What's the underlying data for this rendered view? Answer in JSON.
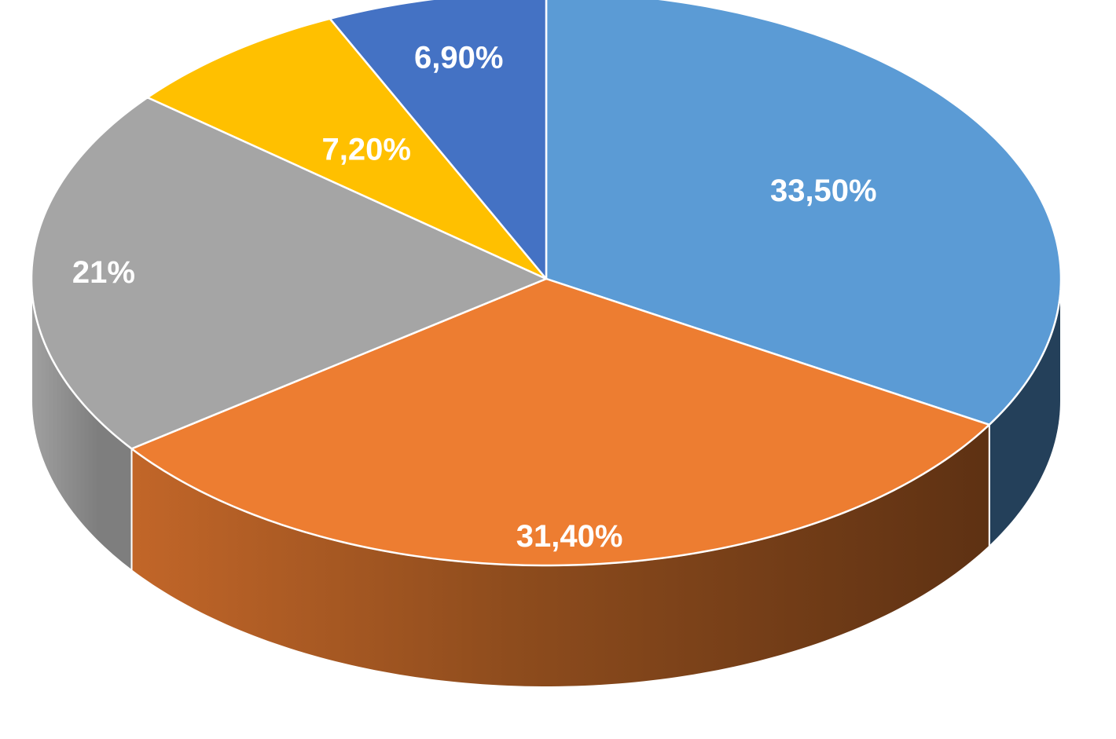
{
  "chart_data": {
    "type": "pie",
    "style": "3d",
    "slices": [
      {
        "label": "33,50%",
        "value": 33.5,
        "color": "#5B9BD5",
        "side_color": "#24405A"
      },
      {
        "label": "31,40%",
        "value": 31.4,
        "color": "#ED7D31",
        "side_color": "#C0651F"
      },
      {
        "label": "21%",
        "value": 21.0,
        "color": "#A5A5A5",
        "side_color": "#7F7F7F"
      },
      {
        "label": "7,20%",
        "value": 7.2,
        "color": "#FFC000",
        "side_color": "#B38600"
      },
      {
        "label": "6,90%",
        "value": 6.9,
        "color": "#4472C4",
        "side_color": "#2F528F"
      }
    ]
  }
}
